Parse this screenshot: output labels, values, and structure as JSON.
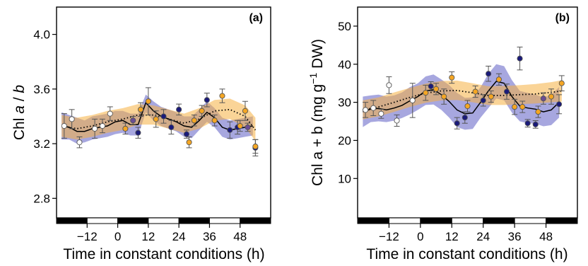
{
  "figure": {
    "x_axis_label": "Time in constant conditions (h)"
  },
  "chart_data": [
    {
      "panel_label": "(a)",
      "panel_letter": "a",
      "type": "line",
      "ylabel": "Chl a / b",
      "xlabel": "Time in constant conditions (h)",
      "xlim": [
        -24,
        60
      ],
      "ylim": [
        2.75,
        4.2
      ],
      "x_ticks": [
        -12,
        0,
        12,
        24,
        36,
        48
      ],
      "y_ticks": [
        2.8,
        3.2,
        3.6,
        4.0
      ],
      "light_dark_bar": [
        {
          "from": -24,
          "to": -12,
          "state": "dark"
        },
        {
          "from": -12,
          "to": 0,
          "state": "light"
        },
        {
          "from": 0,
          "to": 12,
          "state": "dark"
        },
        {
          "from": 12,
          "to": 24,
          "state": "light"
        },
        {
          "from": 24,
          "to": 36,
          "state": "dark"
        },
        {
          "from": 36,
          "to": 48,
          "state": "light"
        },
        {
          "from": 48,
          "to": 60,
          "state": "dark"
        }
      ],
      "fits": [
        {
          "style": "solid",
          "line_color": "#000000",
          "band_color": "#5f5fc4",
          "points": [
            [
              -22,
              3.33,
              3.43,
              3.23
            ],
            [
              -19,
              3.32,
              3.41,
              3.23
            ],
            [
              -16,
              3.29,
              3.39,
              3.2
            ],
            [
              -13,
              3.29,
              3.37,
              3.21
            ],
            [
              -10,
              3.31,
              3.4,
              3.23
            ],
            [
              -7,
              3.32,
              3.41,
              3.24
            ],
            [
              -4,
              3.33,
              3.42,
              3.25
            ],
            [
              -1,
              3.36,
              3.44,
              3.27
            ],
            [
              2,
              3.37,
              3.44,
              3.28
            ],
            [
              5,
              3.34,
              3.42,
              3.26
            ],
            [
              8,
              3.34,
              3.42,
              3.26
            ],
            [
              11,
              3.5,
              3.56,
              3.43
            ],
            [
              14,
              3.44,
              3.51,
              3.37
            ],
            [
              17,
              3.4,
              3.47,
              3.33
            ],
            [
              20,
              3.38,
              3.45,
              3.31
            ],
            [
              23,
              3.36,
              3.43,
              3.29
            ],
            [
              26,
              3.33,
              3.4,
              3.25
            ],
            [
              29,
              3.32,
              3.4,
              3.24
            ],
            [
              32,
              3.37,
              3.45,
              3.3
            ],
            [
              35,
              3.43,
              3.51,
              3.36
            ],
            [
              38,
              3.39,
              3.46,
              3.32
            ],
            [
              41,
              3.32,
              3.39,
              3.25
            ],
            [
              44,
              3.3,
              3.37,
              3.23
            ],
            [
              47,
              3.31,
              3.38,
              3.24
            ],
            [
              50,
              3.32,
              3.39,
              3.25
            ],
            [
              53,
              3.33,
              3.4,
              3.26
            ]
          ]
        },
        {
          "style": "dotted",
          "line_color": "#000000",
          "band_color": "#f5b042",
          "points": [
            [
              -22,
              3.33,
              3.41,
              3.25
            ],
            [
              -16,
              3.31,
              3.39,
              3.23
            ],
            [
              -10,
              3.33,
              3.41,
              3.25
            ],
            [
              -4,
              3.36,
              3.44,
              3.28
            ],
            [
              2,
              3.38,
              3.46,
              3.3
            ],
            [
              8,
              3.41,
              3.49,
              3.34
            ],
            [
              14,
              3.41,
              3.48,
              3.34
            ],
            [
              20,
              3.38,
              3.45,
              3.31
            ],
            [
              26,
              3.35,
              3.42,
              3.28
            ],
            [
              32,
              3.38,
              3.46,
              3.31
            ],
            [
              38,
              3.44,
              3.52,
              3.37
            ],
            [
              44,
              3.45,
              3.53,
              3.38
            ],
            [
              50,
              3.4,
              3.48,
              3.32
            ],
            [
              54,
              3.3,
              3.39,
              3.22
            ]
          ]
        }
      ],
      "observations": [
        {
          "x": -21,
          "y": 3.33,
          "err": 0.09,
          "color": "#ffffff"
        },
        {
          "x": -18,
          "y": 3.38,
          "err": 0.07,
          "color": "#ffffff"
        },
        {
          "x": -15,
          "y": 3.21,
          "err": 0.04,
          "color": "#ffffff"
        },
        {
          "x": -9,
          "y": 3.31,
          "err": 0.07,
          "color": "#ffffff"
        },
        {
          "x": -6,
          "y": 3.33,
          "err": 0.05,
          "color": "#ffffff"
        },
        {
          "x": -3,
          "y": 3.42,
          "err": 0.05,
          "color": "#ffffff"
        },
        {
          "x": 3,
          "y": 3.31,
          "err": 0.04,
          "color": "#f5a623"
        },
        {
          "x": 6,
          "y": 3.37,
          "err": 0.03,
          "color": "#6a4c93"
        },
        {
          "x": 8,
          "y": 3.28,
          "err": 0.04,
          "color": "#1a1a7a"
        },
        {
          "x": 9,
          "y": 3.45,
          "err": 0.05,
          "color": "#f5a623"
        },
        {
          "x": 12,
          "y": 3.51,
          "err": 0.1,
          "color": "#f5a623"
        },
        {
          "x": 15,
          "y": 3.38,
          "err": 0.06,
          "color": "#f5a623"
        },
        {
          "x": 18,
          "y": 3.4,
          "err": 0.05,
          "color": "#1a1a7a"
        },
        {
          "x": 21,
          "y": 3.32,
          "err": 0.05,
          "color": "#1a1a7a"
        },
        {
          "x": 24,
          "y": 3.45,
          "err": 0.04,
          "color": "#1a1a7a"
        },
        {
          "x": 27,
          "y": 3.27,
          "err": 0.03,
          "color": "#1a1a7a"
        },
        {
          "x": 28,
          "y": 3.21,
          "err": 0.04,
          "color": "#f5a623"
        },
        {
          "x": 30,
          "y": 3.37,
          "err": 0.04,
          "color": "#f5a623"
        },
        {
          "x": 33,
          "y": 3.44,
          "err": 0.04,
          "color": "#f5a623"
        },
        {
          "x": 35,
          "y": 3.52,
          "err": 0.05,
          "color": "#1a1a7a"
        },
        {
          "x": 38,
          "y": 3.37,
          "err": 0.04,
          "color": "#f5a623"
        },
        {
          "x": 41,
          "y": 3.55,
          "err": 0.05,
          "color": "#f5a623"
        },
        {
          "x": 44,
          "y": 3.3,
          "err": 0.06,
          "color": "#1a1a7a"
        },
        {
          "x": 47,
          "y": 3.32,
          "err": 0.05,
          "color": "#1a1a7a"
        },
        {
          "x": 48,
          "y": 3.33,
          "err": 0.04,
          "color": "#f5a623"
        },
        {
          "x": 50,
          "y": 3.44,
          "err": 0.07,
          "color": "#f5a623"
        },
        {
          "x": 51,
          "y": 3.32,
          "err": 0.03,
          "color": "#6a4c93"
        },
        {
          "x": 54,
          "y": 3.17,
          "err": 0.06,
          "color": "#1a1a7a"
        },
        {
          "x": 54,
          "y": 3.18,
          "err": 0.05,
          "color": "#f5a623"
        }
      ]
    },
    {
      "panel_label": "(b)",
      "panel_letter": "b",
      "type": "line",
      "ylabel": "Chl a + b (mg g⁻¹ DW)",
      "xlabel": "Time in constant conditions (h)",
      "xlim": [
        -24,
        60
      ],
      "ylim": [
        3,
        55
      ],
      "x_ticks": [
        -12,
        0,
        12,
        24,
        36,
        48
      ],
      "y_ticks": [
        10,
        20,
        30,
        40,
        50
      ],
      "light_dark_bar": [
        {
          "from": -24,
          "to": -12,
          "state": "dark"
        },
        {
          "from": -12,
          "to": 0,
          "state": "light"
        },
        {
          "from": 0,
          "to": 12,
          "state": "dark"
        },
        {
          "from": 12,
          "to": 24,
          "state": "light"
        },
        {
          "from": 24,
          "to": 36,
          "state": "dark"
        },
        {
          "from": 36,
          "to": 48,
          "state": "light"
        },
        {
          "from": 48,
          "to": 60,
          "state": "dark"
        }
      ],
      "fits": [
        {
          "style": "solid",
          "line_color": "#000000",
          "band_color": "#5f5fc4",
          "points": [
            [
              -22,
              27.5,
              31.5,
              23.5
            ],
            [
              -19,
              28.2,
              31.8,
              24.8
            ],
            [
              -16,
              28.4,
              32.0,
              25.0
            ],
            [
              -13,
              28.0,
              31.5,
              24.8
            ],
            [
              -10,
              28.5,
              31.8,
              25.2
            ],
            [
              -7,
              29.2,
              32.6,
              25.9
            ],
            [
              -4,
              30.4,
              34.0,
              26.8
            ],
            [
              -1,
              31.5,
              35.0,
              28.0
            ],
            [
              2,
              33.0,
              36.8,
              29.3
            ],
            [
              5,
              33.3,
              37.3,
              29.4
            ],
            [
              8,
              32.0,
              36.0,
              28.0
            ],
            [
              11,
              30.2,
              34.5,
              26.0
            ],
            [
              14,
              28.0,
              32.5,
              23.5
            ],
            [
              17,
              27.0,
              31.2,
              22.8
            ],
            [
              20,
              27.2,
              31.3,
              23.0
            ],
            [
              23,
              30.0,
              34.0,
              26.0
            ],
            [
              26,
              33.0,
              37.5,
              28.5
            ],
            [
              29,
              35.5,
              40.0,
              31.0
            ],
            [
              32,
              35.0,
              39.5,
              30.5
            ],
            [
              35,
              31.5,
              35.8,
              27.3
            ],
            [
              38,
              29.0,
              33.0,
              25.0
            ],
            [
              41,
              28.5,
              32.5,
              24.5
            ],
            [
              44,
              28.2,
              32.0,
              24.4
            ],
            [
              47,
              27.5,
              31.3,
              23.7
            ],
            [
              50,
              28.0,
              32.0,
              24.0
            ],
            [
              53,
              30.0,
              34.0,
              26.0
            ]
          ]
        },
        {
          "style": "dotted",
          "line_color": "#000000",
          "band_color": "#f5b042",
          "points": [
            [
              -22,
              28.0,
              30.5,
              25.5
            ],
            [
              -16,
              28.8,
              31.3,
              26.3
            ],
            [
              -10,
              30.0,
              32.6,
              27.5
            ],
            [
              -4,
              31.3,
              33.8,
              28.8
            ],
            [
              2,
              32.4,
              34.9,
              29.9
            ],
            [
              8,
              33.0,
              35.6,
              30.5
            ],
            [
              14,
              33.1,
              35.7,
              30.6
            ],
            [
              20,
              32.5,
              35.0,
              30.0
            ],
            [
              26,
              31.8,
              34.2,
              29.3
            ],
            [
              32,
              31.8,
              34.3,
              29.3
            ],
            [
              38,
              32.0,
              34.5,
              29.5
            ],
            [
              44,
              32.2,
              34.8,
              29.7
            ],
            [
              50,
              32.6,
              35.3,
              30.0
            ],
            [
              54,
              33.0,
              35.8,
              30.2
            ]
          ]
        }
      ],
      "observations": [
        {
          "x": -21,
          "y": 28.0,
          "err": 2.0,
          "color": "#ffffff"
        },
        {
          "x": -18,
          "y": 28.5,
          "err": 2.0,
          "color": "#ffffff"
        },
        {
          "x": -15,
          "y": 27.0,
          "err": 1.2,
          "color": "#ffffff"
        },
        {
          "x": -12,
          "y": 34.5,
          "err": 2.2,
          "color": "#ffffff"
        },
        {
          "x": -9,
          "y": 25.2,
          "err": 1.5,
          "color": "#ffffff"
        },
        {
          "x": -3,
          "y": 30.5,
          "err": 4.5,
          "color": "#ffffff"
        },
        {
          "x": 2,
          "y": 32.5,
          "err": 2.0,
          "color": "#f5a623"
        },
        {
          "x": 4,
          "y": 34.2,
          "err": 1.2,
          "color": "#1a1a7a"
        },
        {
          "x": 6,
          "y": 33.5,
          "err": 1.5,
          "color": "#f5a623"
        },
        {
          "x": 9,
          "y": 31.5,
          "err": 2.0,
          "color": "#f5a623"
        },
        {
          "x": 12,
          "y": 36.5,
          "err": 1.5,
          "color": "#f5a623"
        },
        {
          "x": 14,
          "y": 24.5,
          "err": 1.5,
          "color": "#1a1a7a"
        },
        {
          "x": 17,
          "y": 26.0,
          "err": 1.5,
          "color": "#1a1a7a"
        },
        {
          "x": 18,
          "y": 29.0,
          "err": 1.5,
          "color": "#f5a623"
        },
        {
          "x": 21,
          "y": 32.8,
          "err": 1.5,
          "color": "#f5a623"
        },
        {
          "x": 24,
          "y": 30.5,
          "err": 1.5,
          "color": "#1a1a7a"
        },
        {
          "x": 26,
          "y": 37.5,
          "err": 2.0,
          "color": "#1a1a7a"
        },
        {
          "x": 27,
          "y": 31.5,
          "err": 1.5,
          "color": "#f5a623"
        },
        {
          "x": 30,
          "y": 36.0,
          "err": 1.5,
          "color": "#f5a623"
        },
        {
          "x": 33,
          "y": 32.8,
          "err": 2.0,
          "color": "#1a1a7a"
        },
        {
          "x": 36,
          "y": 28.8,
          "err": 2.0,
          "color": "#f5a623"
        },
        {
          "x": 38,
          "y": 41.5,
          "err": 3.0,
          "color": "#1a1a7a"
        },
        {
          "x": 39,
          "y": 28.8,
          "err": 1.5,
          "color": "#f5a623"
        },
        {
          "x": 41,
          "y": 24.5,
          "err": 1.0,
          "color": "#1a1a7a"
        },
        {
          "x": 44,
          "y": 24.2,
          "err": 1.0,
          "color": "#1a1a7a"
        },
        {
          "x": 45,
          "y": 27.5,
          "err": 1.5,
          "color": "#f5a623"
        },
        {
          "x": 47,
          "y": 31.0,
          "err": 1.5,
          "color": "#6a4c93"
        },
        {
          "x": 50,
          "y": 31.5,
          "err": 2.0,
          "color": "#f5a623"
        },
        {
          "x": 53,
          "y": 29.5,
          "err": 2.5,
          "color": "#1a1a7a"
        },
        {
          "x": 54,
          "y": 35.0,
          "err": 2.0,
          "color": "#f5a623"
        }
      ]
    }
  ]
}
